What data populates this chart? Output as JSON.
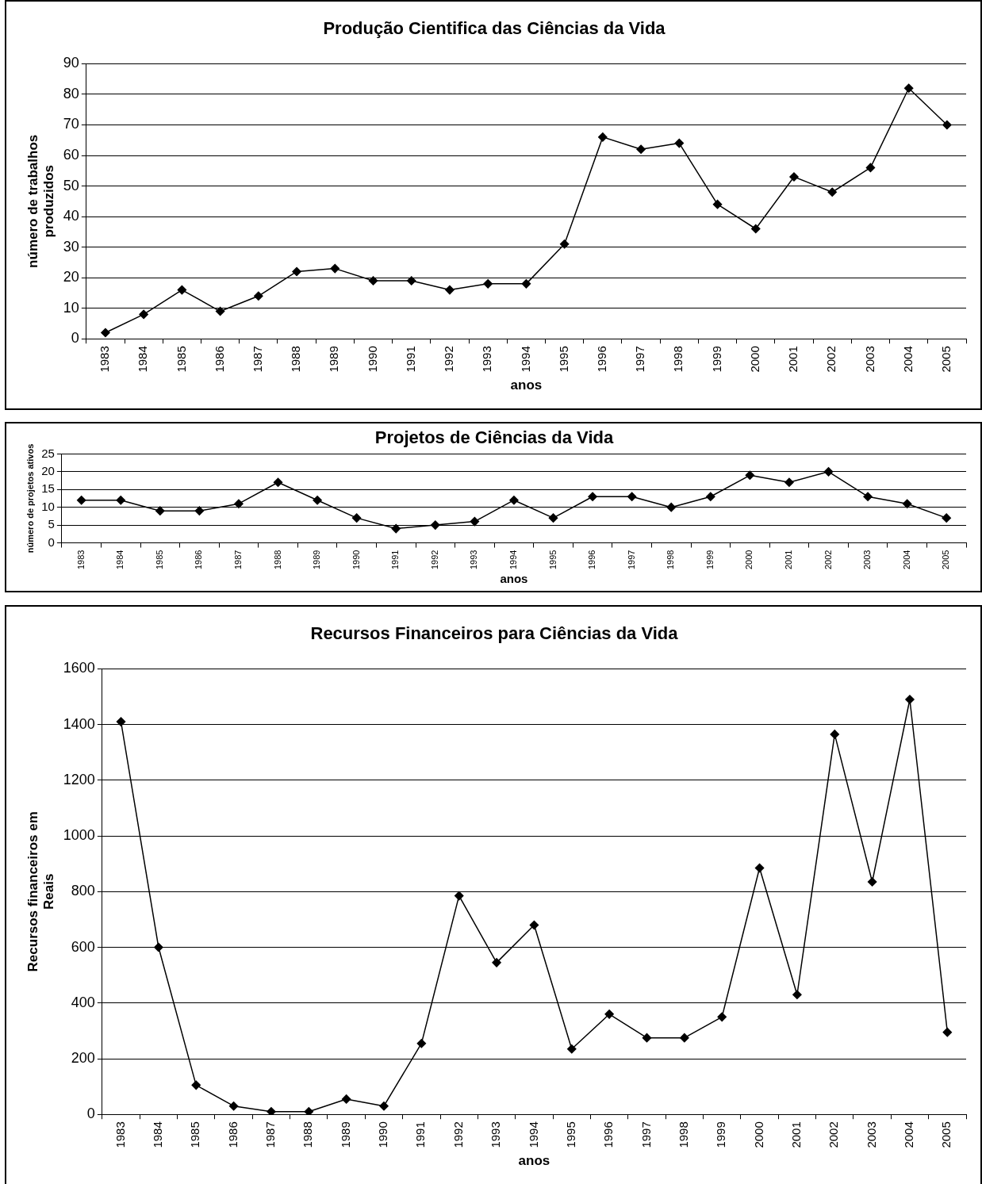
{
  "chart_data": [
    {
      "type": "line",
      "title": "Produção Cientifica das Ciências da Vida",
      "xlabel": "anos",
      "ylabel": "número de trabalhos produzidos",
      "categories": [
        "1983",
        "1984",
        "1985",
        "1986",
        "1987",
        "1988",
        "1989",
        "1990",
        "1991",
        "1992",
        "1993",
        "1994",
        "1995",
        "1996",
        "1997",
        "1998",
        "1999",
        "2000",
        "2001",
        "2002",
        "2003",
        "2004",
        "2005"
      ],
      "series": [
        {
          "color": "#000000",
          "values": [
            2,
            8,
            16,
            9,
            14,
            22,
            23,
            19,
            19,
            16,
            18,
            18,
            31,
            66,
            62,
            64,
            44,
            36,
            53,
            48,
            56,
            82,
            70
          ]
        }
      ],
      "ylim": [
        0,
        90
      ],
      "yticks": [
        0,
        10,
        20,
        30,
        40,
        50,
        60,
        70,
        80,
        90
      ],
      "grid": "y",
      "legend": false,
      "marker": "diamond",
      "line_style": "solid"
    },
    {
      "type": "line",
      "title": "Projetos de Ciências da Vida",
      "xlabel": "anos",
      "ylabel": "número de projetos ativos",
      "categories": [
        "1983",
        "1984",
        "1985",
        "1986",
        "1987",
        "1988",
        "1989",
        "1990",
        "1991",
        "1992",
        "1993",
        "1994",
        "1995",
        "1996",
        "1997",
        "1998",
        "1999",
        "2000",
        "2001",
        "2002",
        "2003",
        "2004",
        "2005"
      ],
      "series": [
        {
          "color": "#000000",
          "values": [
            12,
            12,
            9,
            9,
            11,
            17,
            12,
            7,
            4,
            5,
            6,
            12,
            7,
            13,
            13,
            10,
            13,
            19,
            17,
            20,
            13,
            11,
            7
          ]
        }
      ],
      "ylim": [
        0,
        25
      ],
      "yticks": [
        0,
        5,
        10,
        15,
        20,
        25
      ],
      "grid": "y",
      "legend": false,
      "marker": "diamond",
      "line_style": "solid"
    },
    {
      "type": "line",
      "title": "Recursos Financeiros para Ciências da Vida",
      "xlabel": "anos",
      "ylabel": "Recursos financeiros em Reais",
      "categories": [
        "1983",
        "1984",
        "1985",
        "1986",
        "1987",
        "1988",
        "1989",
        "1990",
        "1991",
        "1992",
        "1993",
        "1994",
        "1995",
        "1996",
        "1997",
        "1998",
        "1999",
        "2000",
        "2001",
        "2002",
        "2003",
        "2004",
        "2005"
      ],
      "series": [
        {
          "color": "#000000",
          "values": [
            1410,
            600,
            105,
            30,
            10,
            10,
            55,
            30,
            255,
            785,
            545,
            680,
            235,
            360,
            275,
            275,
            350,
            885,
            430,
            1365,
            835,
            1490,
            295
          ]
        }
      ],
      "ylim": [
        0,
        1600
      ],
      "yticks": [
        0,
        200,
        400,
        600,
        800,
        1000,
        1200,
        1400,
        1600
      ],
      "grid": "y",
      "legend": false,
      "marker": "diamond",
      "line_style": "solid"
    }
  ]
}
